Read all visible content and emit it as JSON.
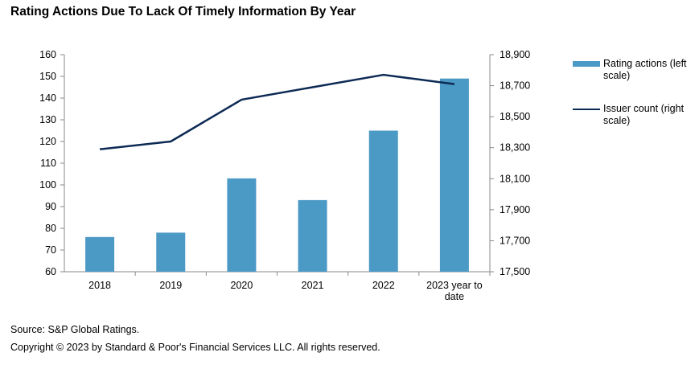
{
  "title": "Rating Actions Due To Lack Of Timely Information By Year",
  "source": "Source: S&P Global Ratings.",
  "copyright": "Copyright © 2023 by Standard & Poor's Financial Services LLC. All rights reserved.",
  "colors": {
    "bar": "#4b9ac6",
    "line": "#0d2a55",
    "axis": "#8a8a8a"
  },
  "legend": {
    "bars": "Rating actions (left scale)",
    "line": "Issuer count (right scale)"
  },
  "chart_data": {
    "type": "bar",
    "categories": [
      "2018",
      "2019",
      "2020",
      "2021",
      "2022",
      "2023 year to date"
    ],
    "series": [
      {
        "name": "Rating actions (left scale)",
        "type": "bar",
        "axis": "left",
        "values": [
          76,
          78,
          103,
          93,
          125,
          149
        ]
      },
      {
        "name": "Issuer count (right scale)",
        "type": "line",
        "axis": "right",
        "values": [
          18290,
          18340,
          18610,
          18690,
          18770,
          18710
        ]
      }
    ],
    "y_left": {
      "lim": [
        60,
        160
      ],
      "ticks": [
        "60",
        "70",
        "80",
        "90",
        "100",
        "110",
        "120",
        "130",
        "140",
        "150",
        "160"
      ]
    },
    "y_right": {
      "lim": [
        17500,
        18900
      ],
      "ticks": [
        "17,500",
        "17,700",
        "17,900",
        "18,100",
        "18,300",
        "18,500",
        "18,700",
        "18,900"
      ]
    },
    "legend_position": "right",
    "grid": false
  }
}
